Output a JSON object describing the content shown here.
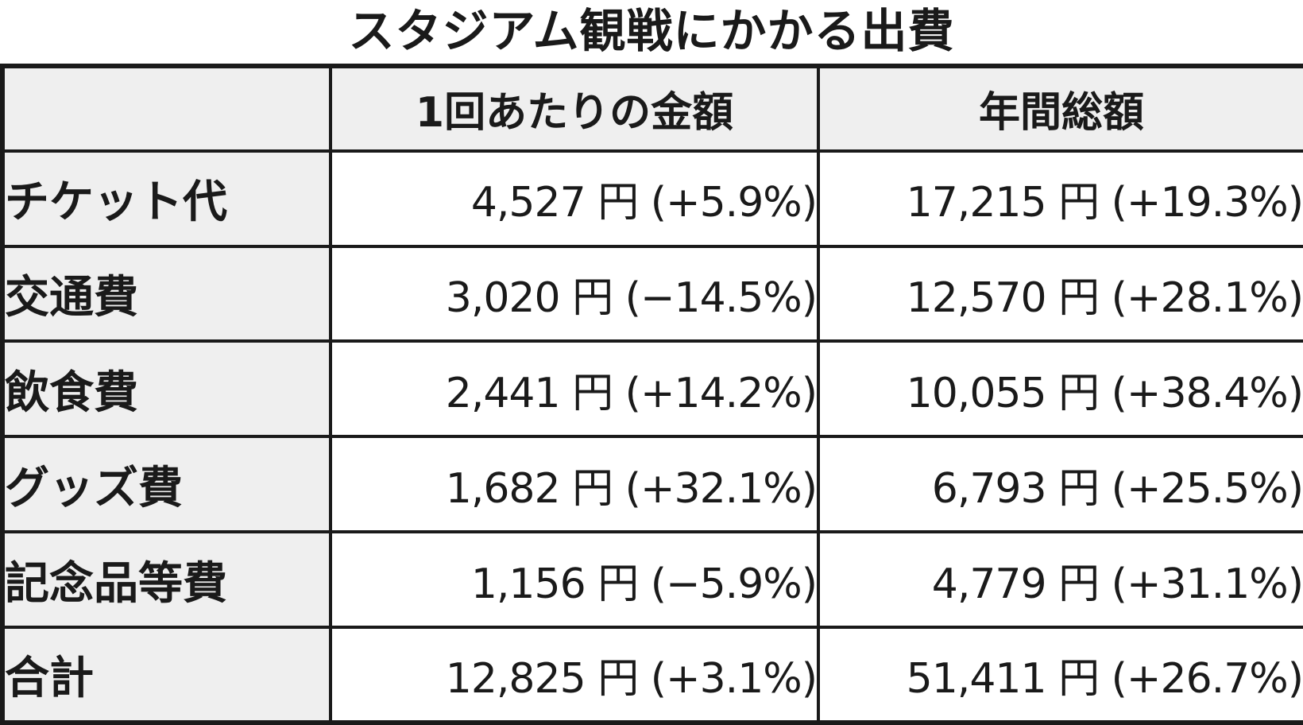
{
  "title": "スタジアム観戦にかかる出費",
  "columns": [
    "",
    "1回あたりの金額",
    "年間総額"
  ],
  "rows": [
    {
      "label": "チケット代",
      "per_visit": "4,527 円 (+5.9%)",
      "annual": "17,215 円 (+19.3%)"
    },
    {
      "label": "交通費",
      "per_visit": "3,020 円 (−14.5%)",
      "annual": "12,570 円 (+28.1%)"
    },
    {
      "label": "飲食費",
      "per_visit": "2,441 円 (+14.2%)",
      "annual": "10,055 円 (+38.4%)"
    },
    {
      "label": "グッズ費",
      "per_visit": "1,682 円 (+32.1%)",
      "annual": "6,793 円 (+25.5%)"
    },
    {
      "label": "記念品等費",
      "per_visit": "1,156 円 (−5.9%)",
      "annual": "4,779 円 (+31.1%)"
    },
    {
      "label": "合計",
      "per_visit": "12,825 円 (+3.1%)",
      "annual": "51,411 円 (+26.7%)"
    }
  ],
  "colors": {
    "header_bg": "#efefef",
    "border": "#1a1a1a",
    "cell_bg": "#ffffff"
  }
}
